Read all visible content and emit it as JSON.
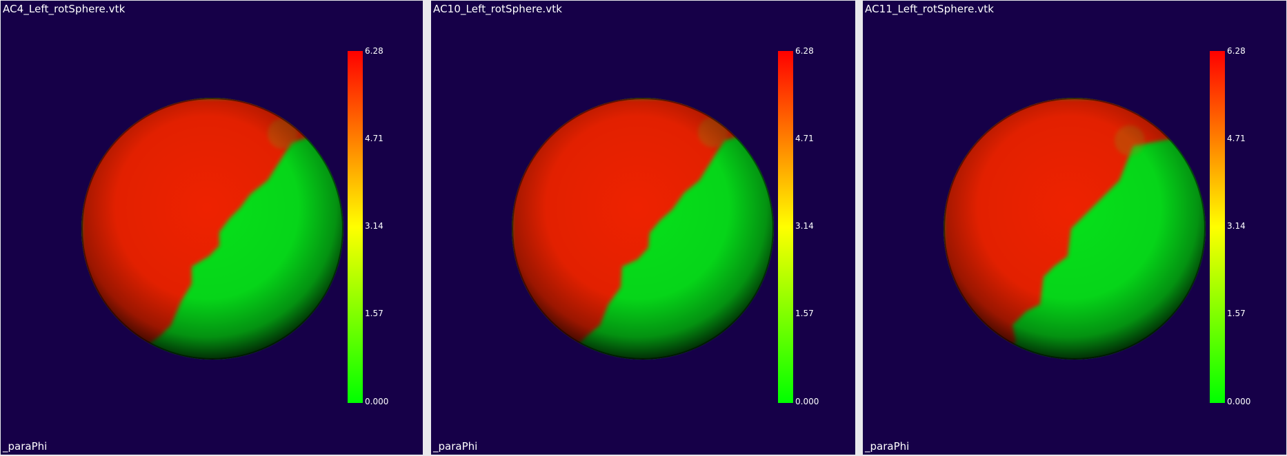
{
  "viewports": [
    {
      "title": "AC4_Left_rotSphere.vtk",
      "field": "_paraPhi",
      "colorbar": {
        "ticks": [
          "6.28",
          "4.71",
          "3.14",
          "1.57",
          "0.000"
        ],
        "min": 0.0,
        "max": 6.28
      }
    },
    {
      "title": "AC10_Left_rotSphere.vtk",
      "field": "_paraPhi",
      "colorbar": {
        "ticks": [
          "6.28",
          "4.71",
          "3.14",
          "1.57",
          "0.000"
        ],
        "min": 0.0,
        "max": 6.28
      }
    },
    {
      "title": "AC11_Left_rotSphere.vtk",
      "field": "_paraPhi",
      "colorbar": {
        "ticks": [
          "6.28",
          "4.71",
          "3.14",
          "1.57",
          "0.000"
        ],
        "min": 0.0,
        "max": 6.28
      }
    }
  ],
  "colors": {
    "background": "#160048",
    "separator": "#e9e9ec",
    "colormap_low": "#00ff00",
    "colormap_mid": "#ffff00",
    "colormap_high": "#ff0000",
    "text": "#ffffff"
  }
}
